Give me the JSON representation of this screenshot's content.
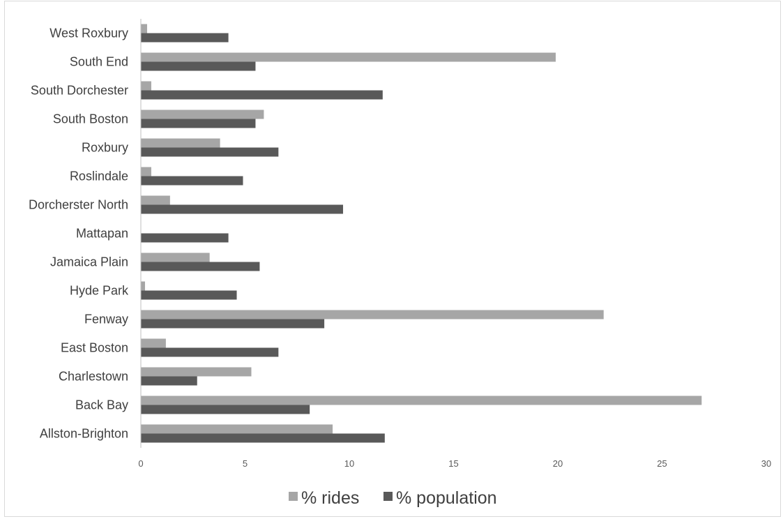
{
  "chart_data": {
    "type": "bar",
    "orientation": "horizontal",
    "categories": [
      "Allston-Brighton",
      "Back Bay",
      "Charlestown",
      "East Boston",
      "Fenway",
      "Hyde Park",
      "Jamaica Plain",
      "Mattapan",
      "Dorcherster North",
      "Roslindale",
      "Roxbury",
      "South Boston",
      "South Dorchester",
      "South End",
      "West Roxbury"
    ],
    "series": [
      {
        "name": "% rides",
        "color": "#a6a6a6",
        "values": [
          9.2,
          26.9,
          5.3,
          1.2,
          22.2,
          0.2,
          3.3,
          0.0,
          1.4,
          0.5,
          3.8,
          5.9,
          0.5,
          19.9,
          0.3
        ]
      },
      {
        "name": "% population",
        "color": "#595959",
        "values": [
          11.7,
          8.1,
          2.7,
          6.6,
          8.8,
          4.6,
          5.7,
          4.2,
          9.7,
          4.9,
          6.6,
          5.5,
          11.6,
          5.5,
          4.2
        ]
      }
    ],
    "xlim": [
      0,
      30
    ],
    "xticks": [
      "0",
      "5",
      "10",
      "15",
      "20",
      "25",
      "30"
    ],
    "title": "",
    "xlabel": "",
    "ylabel": "",
    "grid": false,
    "legend_position": "bottom"
  }
}
